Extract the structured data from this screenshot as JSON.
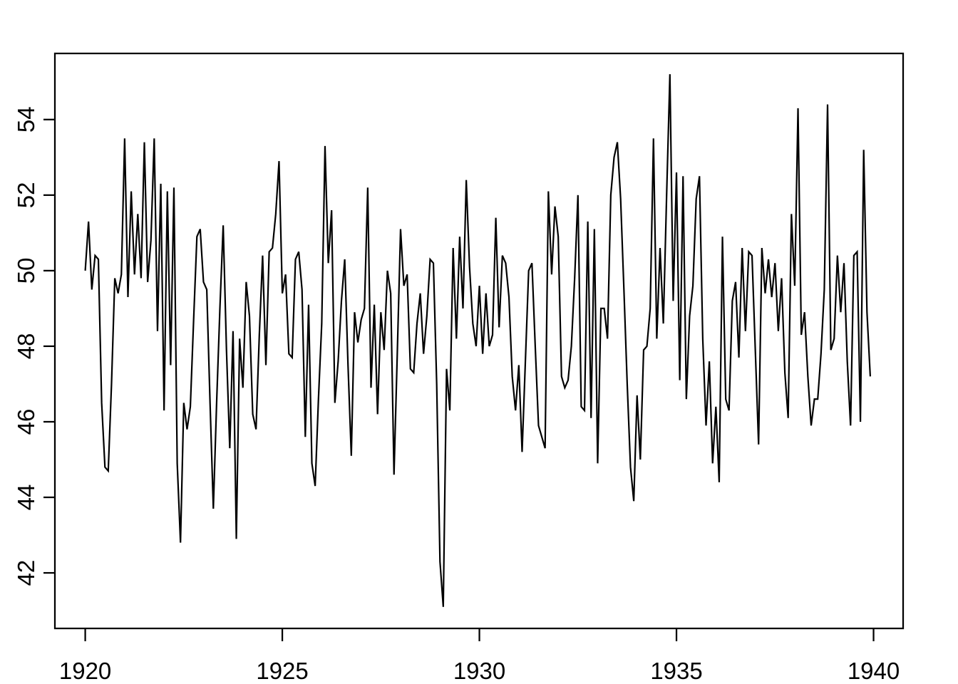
{
  "chart_data": {
    "type": "line",
    "title": "",
    "subtitle": "",
    "xlabel": "",
    "ylabel": "",
    "legend": null,
    "grid": false,
    "background_color": "#ffffff",
    "line_color": "#000000",
    "axis_color": "#000000",
    "x_start": 1920,
    "points_per_year": 12,
    "x_tick_values": [
      1920,
      1925,
      1930,
      1935,
      1940
    ],
    "x_tick_labels": [
      "1920",
      "1925",
      "1930",
      "1935",
      "1940"
    ],
    "y_tick_values": [
      42,
      44,
      46,
      48,
      50,
      52,
      54
    ],
    "y_tick_labels": [
      "42",
      "44",
      "46",
      "48",
      "50",
      "52",
      "54"
    ],
    "xlim": [
      1919.23,
      1940.75
    ],
    "ylim": [
      40.53,
      55.75
    ],
    "values": [
      50.0,
      51.3,
      49.5,
      50.4,
      50.3,
      46.5,
      44.8,
      44.7,
      47.0,
      49.8,
      49.4,
      49.9,
      53.5,
      49.3,
      52.1,
      49.9,
      51.5,
      49.8,
      53.4,
      49.7,
      50.8,
      53.5,
      48.4,
      52.3,
      46.3,
      52.1,
      47.5,
      52.2,
      44.9,
      42.8,
      46.5,
      45.8,
      46.4,
      48.7,
      50.9,
      51.1,
      49.7,
      49.5,
      46.5,
      43.7,
      46.5,
      49.0,
      51.2,
      47.9,
      45.3,
      48.4,
      42.9,
      48.2,
      46.9,
      49.7,
      48.8,
      46.2,
      45.8,
      48.3,
      50.4,
      47.5,
      50.5,
      50.6,
      51.5,
      52.9,
      49.4,
      49.9,
      47.8,
      47.7,
      50.3,
      50.5,
      49.5,
      45.6,
      49.1,
      44.9,
      44.3,
      46.6,
      48.6,
      53.3,
      50.2,
      51.6,
      46.5,
      47.6,
      49.2,
      50.3,
      47.5,
      45.1,
      48.9,
      48.1,
      48.7,
      49.0,
      52.2,
      46.9,
      49.1,
      46.2,
      48.9,
      47.9,
      50.0,
      49.4,
      44.6,
      47.8,
      51.1,
      49.6,
      49.9,
      47.4,
      47.3,
      48.6,
      49.4,
      47.8,
      48.8,
      50.3,
      50.2,
      47.0,
      42.3,
      41.1,
      47.4,
      46.3,
      50.6,
      48.2,
      50.9,
      49.0,
      52.4,
      50.1,
      48.6,
      48.0,
      49.6,
      47.8,
      49.4,
      48.0,
      48.3,
      51.4,
      48.5,
      50.4,
      50.2,
      49.3,
      47.2,
      46.3,
      47.5,
      45.2,
      47.6,
      50.0,
      50.2,
      48.0,
      45.9,
      45.6,
      45.3,
      52.1,
      49.9,
      51.7,
      50.9,
      47.2,
      46.9,
      47.1,
      48.0,
      49.8,
      52.0,
      46.4,
      46.3,
      51.3,
      46.1,
      51.1,
      44.9,
      49.0,
      49.0,
      48.2,
      52.0,
      53.0,
      53.4,
      51.9,
      49.5,
      47.0,
      44.8,
      43.9,
      46.7,
      45.0,
      47.9,
      48.0,
      49.0,
      53.5,
      48.2,
      50.6,
      48.6,
      52.0,
      55.2,
      49.2,
      52.6,
      47.1,
      52.5,
      46.6,
      48.8,
      49.6,
      51.9,
      52.5,
      48.2,
      45.9,
      47.6,
      44.9,
      46.4,
      44.4,
      50.9,
      46.6,
      46.3,
      49.2,
      49.7,
      47.7,
      50.6,
      48.4,
      50.5,
      50.4,
      47.9,
      45.4,
      50.6,
      49.4,
      50.3,
      49.3,
      50.2,
      48.4,
      49.8,
      47.3,
      46.1,
      51.5,
      49.6,
      54.3,
      48.3,
      48.9,
      47.2,
      45.9,
      46.6,
      46.6,
      47.8,
      49.5,
      54.4,
      47.9,
      48.2,
      50.4,
      48.9,
      50.2,
      47.6,
      45.9,
      50.4,
      50.5,
      46.0,
      53.2,
      48.9,
      47.2
    ]
  }
}
